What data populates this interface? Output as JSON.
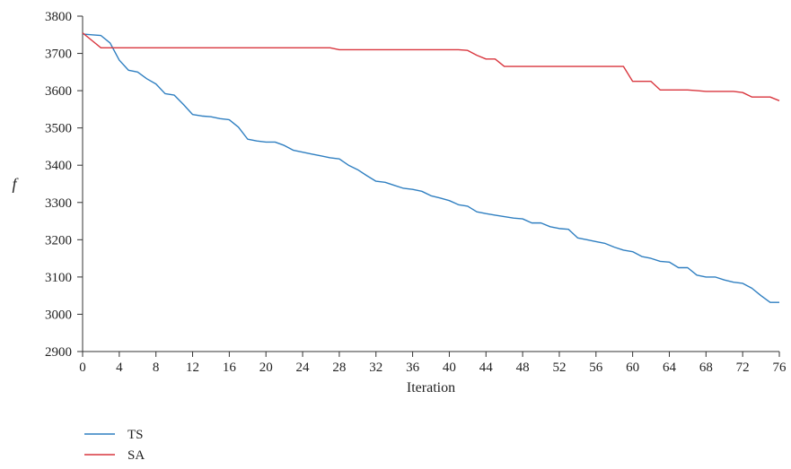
{
  "chart_data": {
    "type": "line",
    "title": "",
    "xlabel": "Iteration",
    "ylabel": "f",
    "xlim": [
      0,
      76
    ],
    "ylim": [
      2900,
      3800
    ],
    "xticks": [
      0,
      4,
      8,
      12,
      16,
      20,
      24,
      28,
      32,
      36,
      40,
      44,
      48,
      52,
      56,
      60,
      64,
      68,
      72,
      76
    ],
    "yticks": [
      2900,
      3000,
      3100,
      3200,
      3300,
      3400,
      3500,
      3600,
      3700,
      3800
    ],
    "grid": false,
    "legend_position": "bottom-left",
    "series": [
      {
        "name": "TS",
        "color": "#2f7fc1",
        "x": [
          0,
          1,
          2,
          3,
          4,
          5,
          6,
          7,
          8,
          9,
          10,
          11,
          12,
          13,
          14,
          15,
          16,
          17,
          18,
          19,
          20,
          21,
          22,
          23,
          24,
          25,
          26,
          27,
          28,
          29,
          30,
          31,
          32,
          33,
          34,
          35,
          36,
          37,
          38,
          39,
          40,
          41,
          42,
          43,
          44,
          45,
          46,
          47,
          48,
          49,
          50,
          51,
          52,
          53,
          54,
          55,
          56,
          57,
          58,
          59,
          60,
          61,
          62,
          63,
          64,
          65,
          66,
          67,
          68,
          69,
          70,
          71,
          72,
          73,
          74,
          75,
          76
        ],
        "y": [
          3752,
          3750,
          3748,
          3728,
          3682,
          3655,
          3650,
          3632,
          3618,
          3592,
          3588,
          3563,
          3536,
          3532,
          3530,
          3525,
          3522,
          3502,
          3470,
          3465,
          3462,
          3462,
          3453,
          3440,
          3435,
          3430,
          3425,
          3420,
          3417,
          3400,
          3388,
          3372,
          3357,
          3354,
          3346,
          3338,
          3335,
          3330,
          3318,
          3312,
          3305,
          3294,
          3290,
          3275,
          3270,
          3266,
          3262,
          3258,
          3256,
          3245,
          3245,
          3235,
          3230,
          3228,
          3205,
          3200,
          3195,
          3190,
          3180,
          3172,
          3168,
          3155,
          3150,
          3142,
          3140,
          3125,
          3125,
          3105,
          3100,
          3100,
          3092,
          3086,
          3083,
          3070,
          3050,
          3032,
          3032
        ]
      },
      {
        "name": "SA",
        "color": "#d9363e",
        "x": [
          0,
          1,
          2,
          3,
          4,
          5,
          6,
          7,
          8,
          9,
          10,
          11,
          12,
          13,
          14,
          15,
          16,
          17,
          18,
          19,
          20,
          21,
          22,
          23,
          24,
          25,
          26,
          27,
          28,
          29,
          30,
          31,
          32,
          33,
          34,
          35,
          36,
          37,
          38,
          39,
          40,
          41,
          42,
          43,
          44,
          45,
          46,
          47,
          48,
          49,
          50,
          51,
          52,
          53,
          54,
          55,
          56,
          57,
          58,
          59,
          60,
          61,
          62,
          63,
          64,
          65,
          66,
          67,
          68,
          69,
          70,
          71,
          72,
          73,
          74,
          75,
          76
        ],
        "y": [
          3755,
          3735,
          3715,
          3715,
          3715,
          3715,
          3715,
          3715,
          3715,
          3715,
          3715,
          3715,
          3715,
          3715,
          3715,
          3715,
          3715,
          3715,
          3715,
          3715,
          3715,
          3715,
          3715,
          3715,
          3715,
          3715,
          3715,
          3715,
          3710,
          3710,
          3710,
          3710,
          3710,
          3710,
          3710,
          3710,
          3710,
          3710,
          3710,
          3710,
          3710,
          3710,
          3708,
          3695,
          3685,
          3685,
          3665,
          3665,
          3665,
          3665,
          3665,
          3665,
          3665,
          3665,
          3665,
          3665,
          3665,
          3665,
          3665,
          3665,
          3625,
          3625,
          3625,
          3602,
          3602,
          3602,
          3602,
          3600,
          3598,
          3598,
          3598,
          3598,
          3595,
          3583,
          3583,
          3583,
          3573
        ]
      }
    ]
  }
}
